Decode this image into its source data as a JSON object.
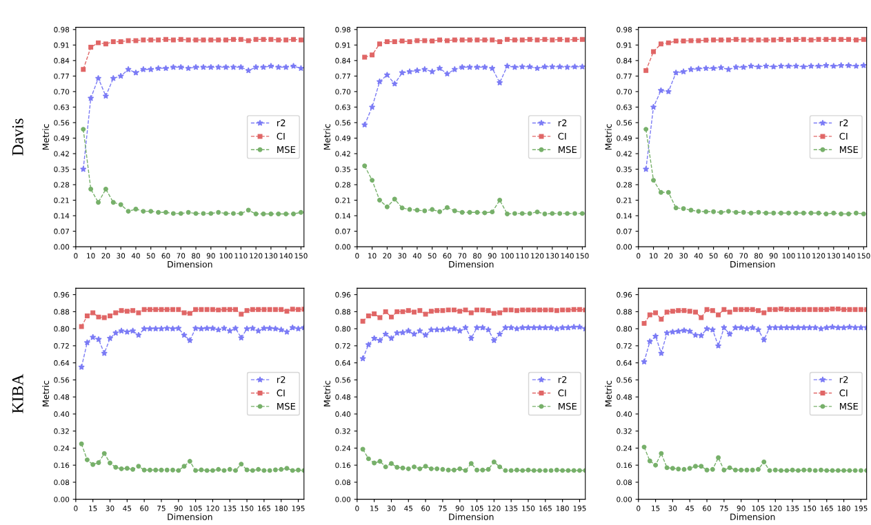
{
  "chart_data": [
    {
      "type": "line",
      "xlabel": "Dimension",
      "ylabel": "Metric",
      "annotations": [
        "Davis"
      ],
      "legend": "center right",
      "grid": false,
      "line_style": "dashed",
      "x": [
        5,
        10,
        15,
        20,
        25,
        30,
        35,
        40,
        45,
        50,
        55,
        60,
        65,
        70,
        75,
        80,
        85,
        90,
        95,
        100,
        105,
        110,
        115,
        120,
        125,
        130,
        135,
        140,
        145,
        150
      ],
      "xlim": [
        0,
        152
      ],
      "xticks": [
        0,
        10,
        20,
        30,
        40,
        50,
        60,
        70,
        80,
        90,
        100,
        110,
        120,
        130,
        140,
        150
      ],
      "ylim": [
        0,
        0.99
      ],
      "yticks": [
        {
          "value": 0,
          "label": "0.00"
        },
        0.07,
        0.14,
        0.21,
        0.28,
        0.35,
        0.42,
        0.49,
        0.56,
        0.63,
        {
          "value": 0.7,
          "label": "0.70"
        },
        0.77,
        0.84,
        0.91,
        0.98
      ],
      "series": [
        {
          "name": "r2",
          "color": "#7b7bf5",
          "marker": "star",
          "values": [
            0.35,
            0.67,
            0.76,
            0.68,
            0.76,
            0.77,
            0.8,
            0.785,
            0.8,
            0.8,
            0.805,
            0.805,
            0.81,
            0.81,
            0.805,
            0.81,
            0.81,
            0.81,
            0.81,
            0.81,
            0.81,
            0.81,
            0.795,
            0.81,
            0.81,
            0.815,
            0.81,
            0.81,
            0.815,
            0.805
          ]
        },
        {
          "name": "CI",
          "color": "#e06666",
          "marker": "square",
          "values": [
            0.8,
            0.9,
            0.92,
            0.915,
            0.925,
            0.925,
            0.93,
            0.93,
            0.933,
            0.933,
            0.933,
            0.935,
            0.933,
            0.935,
            0.933,
            0.933,
            0.933,
            0.933,
            0.933,
            0.933,
            0.935,
            0.935,
            0.93,
            0.935,
            0.935,
            0.935,
            0.933,
            0.933,
            0.935,
            0.933
          ]
        },
        {
          "name": "MSE",
          "color": "#77b06a",
          "marker": "circle",
          "values": [
            0.53,
            0.26,
            0.2,
            0.26,
            0.2,
            0.19,
            0.16,
            0.17,
            0.16,
            0.16,
            0.155,
            0.155,
            0.15,
            0.15,
            0.155,
            0.15,
            0.15,
            0.15,
            0.155,
            0.15,
            0.15,
            0.15,
            0.165,
            0.148,
            0.148,
            0.148,
            0.148,
            0.148,
            0.148,
            0.155
          ]
        }
      ]
    },
    {
      "type": "line",
      "xlabel": "Dimension",
      "ylabel": "Metric",
      "legend": "center right",
      "grid": false,
      "line_style": "dashed",
      "x": [
        5,
        10,
        15,
        20,
        25,
        30,
        35,
        40,
        45,
        50,
        55,
        60,
        65,
        70,
        75,
        80,
        85,
        90,
        95,
        100,
        105,
        110,
        115,
        120,
        125,
        130,
        135,
        140,
        145,
        150
      ],
      "xlim": [
        0,
        152
      ],
      "xticks": [
        0,
        10,
        20,
        30,
        40,
        50,
        60,
        70,
        80,
        90,
        100,
        110,
        120,
        130,
        140,
        150
      ],
      "ylim": [
        0,
        0.99
      ],
      "yticks": [
        {
          "value": 0,
          "label": "0.00"
        },
        0.07,
        0.14,
        0.21,
        0.28,
        0.35,
        0.42,
        0.49,
        0.56,
        0.63,
        {
          "value": 0.7,
          "label": "0.70"
        },
        0.77,
        0.84,
        0.91,
        0.98
      ],
      "series": [
        {
          "name": "r2",
          "color": "#7b7bf5",
          "marker": "star",
          "values": [
            0.55,
            0.63,
            0.745,
            0.775,
            0.735,
            0.785,
            0.79,
            0.795,
            0.8,
            0.79,
            0.805,
            0.78,
            0.8,
            0.81,
            0.81,
            0.81,
            0.81,
            0.805,
            0.74,
            0.815,
            0.81,
            0.812,
            0.812,
            0.805,
            0.812,
            0.812,
            0.812,
            0.81,
            0.812,
            0.812
          ]
        },
        {
          "name": "CI",
          "color": "#e06666",
          "marker": "square",
          "values": [
            0.855,
            0.865,
            0.915,
            0.925,
            0.925,
            0.928,
            0.925,
            0.93,
            0.93,
            0.928,
            0.933,
            0.93,
            0.933,
            0.933,
            0.933,
            0.933,
            0.933,
            0.933,
            0.925,
            0.935,
            0.933,
            0.933,
            0.935,
            0.933,
            0.935,
            0.933,
            0.935,
            0.933,
            0.935,
            0.935
          ]
        },
        {
          "name": "MSE",
          "color": "#77b06a",
          "marker": "circle",
          "values": [
            0.365,
            0.3,
            0.21,
            0.18,
            0.215,
            0.175,
            0.168,
            0.165,
            0.162,
            0.168,
            0.158,
            0.177,
            0.162,
            0.155,
            0.155,
            0.155,
            0.153,
            0.157,
            0.21,
            0.148,
            0.15,
            0.15,
            0.15,
            0.157,
            0.148,
            0.15,
            0.15,
            0.15,
            0.15,
            0.15
          ]
        }
      ]
    },
    {
      "type": "line",
      "xlabel": "Dimension",
      "ylabel": "Metric",
      "legend": "center right",
      "grid": false,
      "line_style": "dashed",
      "x": [
        5,
        10,
        15,
        20,
        25,
        30,
        35,
        40,
        45,
        50,
        55,
        60,
        65,
        70,
        75,
        80,
        85,
        90,
        95,
        100,
        105,
        110,
        115,
        120,
        125,
        130,
        135,
        140,
        145,
        150
      ],
      "xlim": [
        0,
        152
      ],
      "xticks": [
        0,
        10,
        20,
        30,
        40,
        50,
        60,
        70,
        80,
        90,
        100,
        110,
        120,
        130,
        140,
        150
      ],
      "ylim": [
        0,
        0.99
      ],
      "yticks": [
        {
          "value": 0,
          "label": "0.00"
        },
        0.07,
        0.14,
        0.21,
        0.28,
        0.35,
        0.42,
        0.49,
        0.56,
        0.63,
        {
          "value": 0.7,
          "label": "0.70"
        },
        0.77,
        0.84,
        0.91,
        0.98
      ],
      "series": [
        {
          "name": "r2",
          "color": "#7b7bf5",
          "marker": "star",
          "values": [
            0.35,
            0.63,
            0.705,
            0.7,
            0.785,
            0.79,
            0.8,
            0.803,
            0.805,
            0.805,
            0.808,
            0.8,
            0.81,
            0.81,
            0.815,
            0.812,
            0.815,
            0.812,
            0.815,
            0.815,
            0.815,
            0.812,
            0.815,
            0.815,
            0.818,
            0.815,
            0.818,
            0.818,
            0.815,
            0.818
          ]
        },
        {
          "name": "CI",
          "color": "#e06666",
          "marker": "square",
          "values": [
            0.795,
            0.88,
            0.915,
            0.92,
            0.928,
            0.928,
            0.93,
            0.93,
            0.932,
            0.933,
            0.933,
            0.933,
            0.935,
            0.933,
            0.933,
            0.933,
            0.933,
            0.933,
            0.935,
            0.933,
            0.935,
            0.935,
            0.933,
            0.935,
            0.935,
            0.935,
            0.935,
            0.935,
            0.933,
            0.935
          ]
        },
        {
          "name": "MSE",
          "color": "#77b06a",
          "marker": "circle",
          "values": [
            0.53,
            0.3,
            0.245,
            0.245,
            0.175,
            0.172,
            0.165,
            0.16,
            0.158,
            0.158,
            0.155,
            0.16,
            0.155,
            0.155,
            0.152,
            0.155,
            0.152,
            0.152,
            0.152,
            0.152,
            0.152,
            0.152,
            0.152,
            0.152,
            0.148,
            0.152,
            0.148,
            0.148,
            0.152,
            0.148
          ]
        }
      ]
    },
    {
      "type": "line",
      "xlabel": "Dimension",
      "ylabel": "Metric",
      "annotations": [
        "KIBA"
      ],
      "legend": "center right",
      "grid": false,
      "line_style": "dashed",
      "x": [
        5,
        10,
        15,
        20,
        25,
        30,
        35,
        40,
        45,
        50,
        55,
        60,
        65,
        70,
        75,
        80,
        85,
        90,
        95,
        100,
        105,
        110,
        115,
        120,
        125,
        130,
        135,
        140,
        145,
        150,
        155,
        160,
        165,
        170,
        175,
        180,
        185,
        190,
        195,
        200
      ],
      "xlim": [
        0,
        200
      ],
      "xticks": [
        0,
        15,
        30,
        45,
        60,
        75,
        90,
        105,
        120,
        135,
        150,
        165,
        180,
        195
      ],
      "ylim": [
        0,
        0.99
      ],
      "yticks": [
        {
          "value": 0,
          "label": "0.00"
        },
        0.08,
        0.16,
        0.24,
        0.32,
        {
          "value": 0.4,
          "label": "0.40"
        },
        0.48,
        0.56,
        0.64,
        0.72,
        {
          "value": 0.8,
          "label": "0.80"
        },
        0.88,
        0.96
      ],
      "series": [
        {
          "name": "r2",
          "color": "#7b7bf5",
          "marker": "star",
          "values": [
            0.62,
            0.735,
            0.76,
            0.75,
            0.685,
            0.755,
            0.78,
            0.79,
            0.785,
            0.79,
            0.77,
            0.8,
            0.8,
            0.8,
            0.8,
            0.802,
            0.8,
            0.802,
            0.77,
            0.745,
            0.802,
            0.8,
            0.802,
            0.802,
            0.795,
            0.802,
            0.79,
            0.802,
            0.757,
            0.8,
            0.802,
            0.79,
            0.802,
            0.802,
            0.8,
            0.795,
            0.785,
            0.805,
            0.8,
            0.805
          ]
        },
        {
          "name": "CI",
          "color": "#e06666",
          "marker": "square",
          "values": [
            0.81,
            0.86,
            0.875,
            0.855,
            0.852,
            0.86,
            0.875,
            0.885,
            0.882,
            0.885,
            0.875,
            0.89,
            0.89,
            0.89,
            0.89,
            0.89,
            0.89,
            0.89,
            0.875,
            0.872,
            0.89,
            0.89,
            0.89,
            0.89,
            0.888,
            0.89,
            0.89,
            0.89,
            0.868,
            0.885,
            0.89,
            0.89,
            0.89,
            0.89,
            0.89,
            0.89,
            0.882,
            0.892,
            0.89,
            0.892
          ]
        },
        {
          "name": "MSE",
          "color": "#77b06a",
          "marker": "circle",
          "values": [
            0.26,
            0.185,
            0.163,
            0.172,
            0.215,
            0.17,
            0.15,
            0.143,
            0.145,
            0.14,
            0.155,
            0.137,
            0.137,
            0.137,
            0.137,
            0.137,
            0.137,
            0.135,
            0.155,
            0.178,
            0.135,
            0.138,
            0.135,
            0.135,
            0.14,
            0.135,
            0.14,
            0.135,
            0.165,
            0.138,
            0.135,
            0.14,
            0.135,
            0.135,
            0.138,
            0.14,
            0.145,
            0.135,
            0.137,
            0.135
          ]
        }
      ]
    },
    {
      "type": "line",
      "xlabel": "Dimension",
      "ylabel": "Metric",
      "legend": "center right",
      "grid": false,
      "line_style": "dashed",
      "x": [
        5,
        10,
        15,
        20,
        25,
        30,
        35,
        40,
        45,
        50,
        55,
        60,
        65,
        70,
        75,
        80,
        85,
        90,
        95,
        100,
        105,
        110,
        115,
        120,
        125,
        130,
        135,
        140,
        145,
        150,
        155,
        160,
        165,
        170,
        175,
        180,
        185,
        190,
        195,
        200
      ],
      "xlim": [
        0,
        200
      ],
      "xticks": [
        0,
        15,
        30,
        45,
        60,
        75,
        90,
        105,
        120,
        135,
        150,
        165,
        180,
        195
      ],
      "ylim": [
        0,
        0.99
      ],
      "yticks": [
        {
          "value": 0,
          "label": "0.00"
        },
        0.08,
        0.16,
        0.24,
        0.32,
        {
          "value": 0.4,
          "label": "0.40"
        },
        0.48,
        0.56,
        0.64,
        0.72,
        {
          "value": 0.8,
          "label": "0.80"
        },
        0.88,
        0.96
      ],
      "series": [
        {
          "name": "r2",
          "color": "#7b7bf5",
          "marker": "star",
          "values": [
            0.66,
            0.725,
            0.755,
            0.745,
            0.775,
            0.755,
            0.78,
            0.782,
            0.79,
            0.775,
            0.79,
            0.77,
            0.795,
            0.795,
            0.795,
            0.8,
            0.8,
            0.79,
            0.805,
            0.755,
            0.805,
            0.805,
            0.795,
            0.745,
            0.775,
            0.805,
            0.805,
            0.8,
            0.805,
            0.805,
            0.805,
            0.805,
            0.805,
            0.805,
            0.8,
            0.805,
            0.805,
            0.808,
            0.808,
            0.8
          ]
        },
        {
          "name": "CI",
          "color": "#e06666",
          "marker": "square",
          "values": [
            0.835,
            0.86,
            0.87,
            0.852,
            0.88,
            0.855,
            0.88,
            0.88,
            0.885,
            0.878,
            0.885,
            0.868,
            0.882,
            0.885,
            0.885,
            0.888,
            0.888,
            0.882,
            0.888,
            0.875,
            0.888,
            0.888,
            0.885,
            0.872,
            0.875,
            0.888,
            0.888,
            0.885,
            0.888,
            0.888,
            0.888,
            0.888,
            0.888,
            0.888,
            0.885,
            0.888,
            0.888,
            0.89,
            0.89,
            0.888
          ]
        },
        {
          "name": "MSE",
          "color": "#77b06a",
          "marker": "circle",
          "values": [
            0.235,
            0.19,
            0.17,
            0.178,
            0.152,
            0.168,
            0.15,
            0.147,
            0.143,
            0.152,
            0.143,
            0.155,
            0.143,
            0.143,
            0.14,
            0.137,
            0.137,
            0.143,
            0.135,
            0.168,
            0.137,
            0.137,
            0.14,
            0.175,
            0.152,
            0.135,
            0.135,
            0.137,
            0.135,
            0.137,
            0.135,
            0.135,
            0.135,
            0.135,
            0.137,
            0.135,
            0.135,
            0.135,
            0.135,
            0.135
          ]
        }
      ]
    },
    {
      "type": "line",
      "xlabel": "Dimension",
      "ylabel": "Metric",
      "legend": "center right",
      "grid": false,
      "line_style": "dashed",
      "x": [
        5,
        10,
        15,
        20,
        25,
        30,
        35,
        40,
        45,
        50,
        55,
        60,
        65,
        70,
        75,
        80,
        85,
        90,
        95,
        100,
        105,
        110,
        115,
        120,
        125,
        130,
        135,
        140,
        145,
        150,
        155,
        160,
        165,
        170,
        175,
        180,
        185,
        190,
        195,
        200
      ],
      "xlim": [
        0,
        200
      ],
      "xticks": [
        0,
        15,
        30,
        45,
        60,
        75,
        90,
        105,
        120,
        135,
        150,
        165,
        180,
        195
      ],
      "ylim": [
        0,
        0.99
      ],
      "yticks": [
        {
          "value": 0,
          "label": "0.00"
        },
        0.08,
        0.16,
        0.24,
        0.32,
        {
          "value": 0.4,
          "label": "0.40"
        },
        0.48,
        0.56,
        0.64,
        0.72,
        {
          "value": 0.8,
          "label": "0.80"
        },
        0.88,
        0.96
      ],
      "series": [
        {
          "name": "r2",
          "color": "#7b7bf5",
          "marker": "star",
          "values": [
            0.645,
            0.74,
            0.765,
            0.685,
            0.78,
            0.785,
            0.788,
            0.792,
            0.788,
            0.77,
            0.768,
            0.8,
            0.795,
            0.72,
            0.805,
            0.775,
            0.805,
            0.805,
            0.8,
            0.805,
            0.795,
            0.748,
            0.805,
            0.805,
            0.805,
            0.805,
            0.805,
            0.805,
            0.805,
            0.805,
            0.805,
            0.8,
            0.805,
            0.808,
            0.805,
            0.805,
            0.808,
            0.805,
            0.805,
            0.805
          ]
        },
        {
          "name": "CI",
          "color": "#e06666",
          "marker": "square",
          "values": [
            0.825,
            0.865,
            0.875,
            0.845,
            0.878,
            0.882,
            0.885,
            0.885,
            0.882,
            0.878,
            0.852,
            0.89,
            0.885,
            0.865,
            0.89,
            0.878,
            0.89,
            0.89,
            0.89,
            0.89,
            0.885,
            0.875,
            0.89,
            0.89,
            0.893,
            0.89,
            0.89,
            0.89,
            0.89,
            0.89,
            0.89,
            0.89,
            0.89,
            0.893,
            0.893,
            0.89,
            0.89,
            0.89,
            0.89,
            0.89
          ]
        },
        {
          "name": "MSE",
          "color": "#77b06a",
          "marker": "circle",
          "values": [
            0.245,
            0.18,
            0.16,
            0.215,
            0.148,
            0.145,
            0.142,
            0.14,
            0.145,
            0.155,
            0.155,
            0.137,
            0.14,
            0.195,
            0.137,
            0.148,
            0.137,
            0.137,
            0.137,
            0.137,
            0.14,
            0.175,
            0.135,
            0.137,
            0.135,
            0.135,
            0.137,
            0.135,
            0.137,
            0.137,
            0.135,
            0.137,
            0.135,
            0.135,
            0.135,
            0.135,
            0.135,
            0.135,
            0.135,
            0.135
          ]
        }
      ]
    }
  ]
}
